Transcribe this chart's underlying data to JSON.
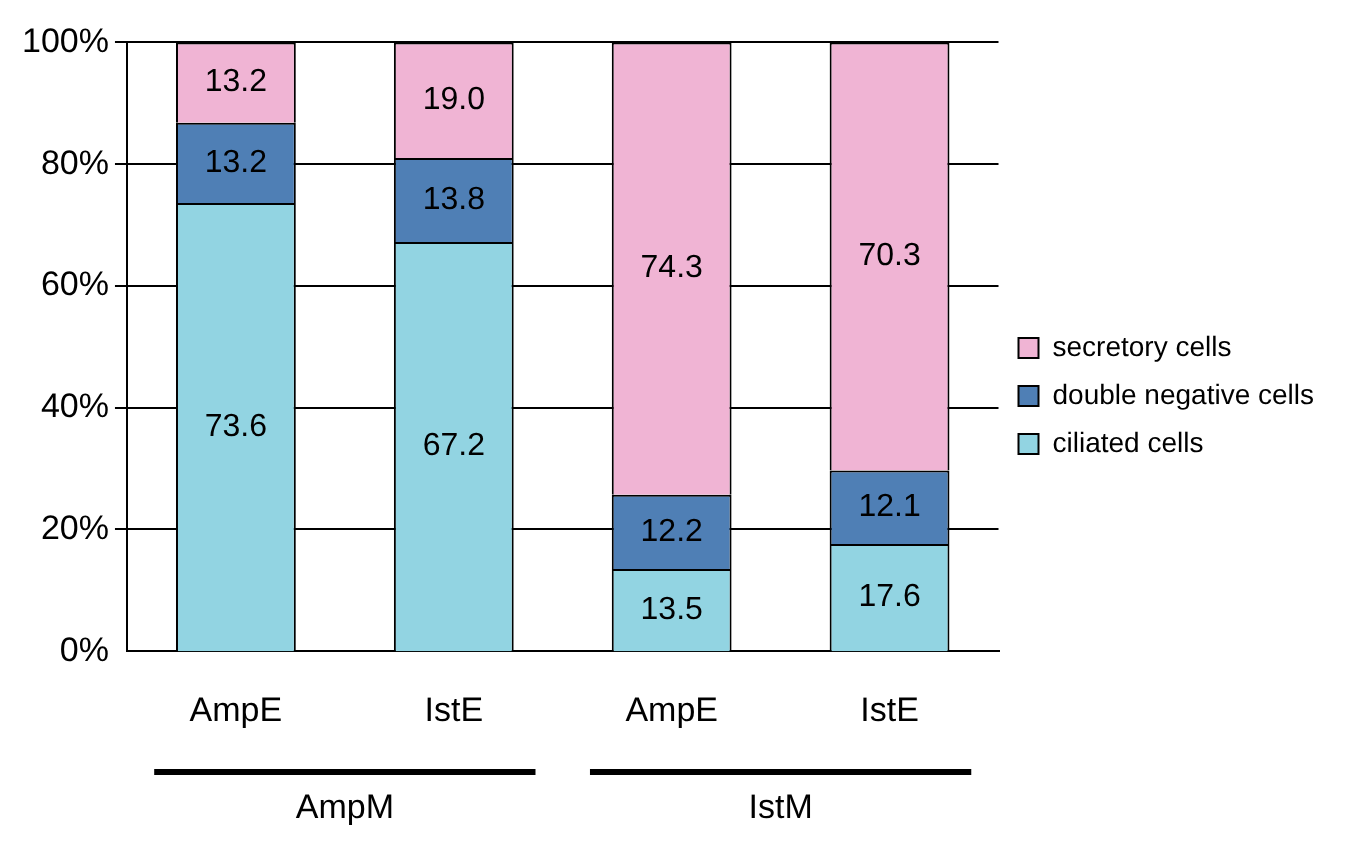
{
  "chart_data": {
    "type": "bar",
    "stacked": true,
    "categories": [
      "AmpE",
      "IstE",
      "AmpE",
      "IstE"
    ],
    "series": [
      {
        "name": "ciliated cells",
        "color": "#92d4e2",
        "values": [
          73.6,
          67.2,
          13.5,
          17.6
        ],
        "value_labels": [
          "73.6",
          "67.2",
          "13.5",
          "17.6"
        ]
      },
      {
        "name": "double negative cells",
        "color": "#4f7fb5",
        "values": [
          13.2,
          13.8,
          12.2,
          12.1
        ],
        "value_labels": [
          "13.2",
          "13.8",
          "12.2",
          "12.1"
        ]
      },
      {
        "name": "secretory cells",
        "color": "#f0b4d4",
        "values": [
          13.2,
          19.0,
          74.3,
          70.3
        ],
        "value_labels": [
          "13.2",
          "19.0",
          "74.3",
          "70.3"
        ]
      }
    ],
    "ylim": [
      0,
      100
    ],
    "yticks": [
      {
        "value": 0,
        "label": "0%"
      },
      {
        "value": 20,
        "label": "20%"
      },
      {
        "value": 40,
        "label": "40%"
      },
      {
        "value": 60,
        "label": "60%"
      },
      {
        "value": 80,
        "label": "80%"
      },
      {
        "value": 100,
        "label": "100%"
      }
    ],
    "grid": "y",
    "legend": "right",
    "annotations": [
      "AmpM",
      "IstM"
    ]
  }
}
